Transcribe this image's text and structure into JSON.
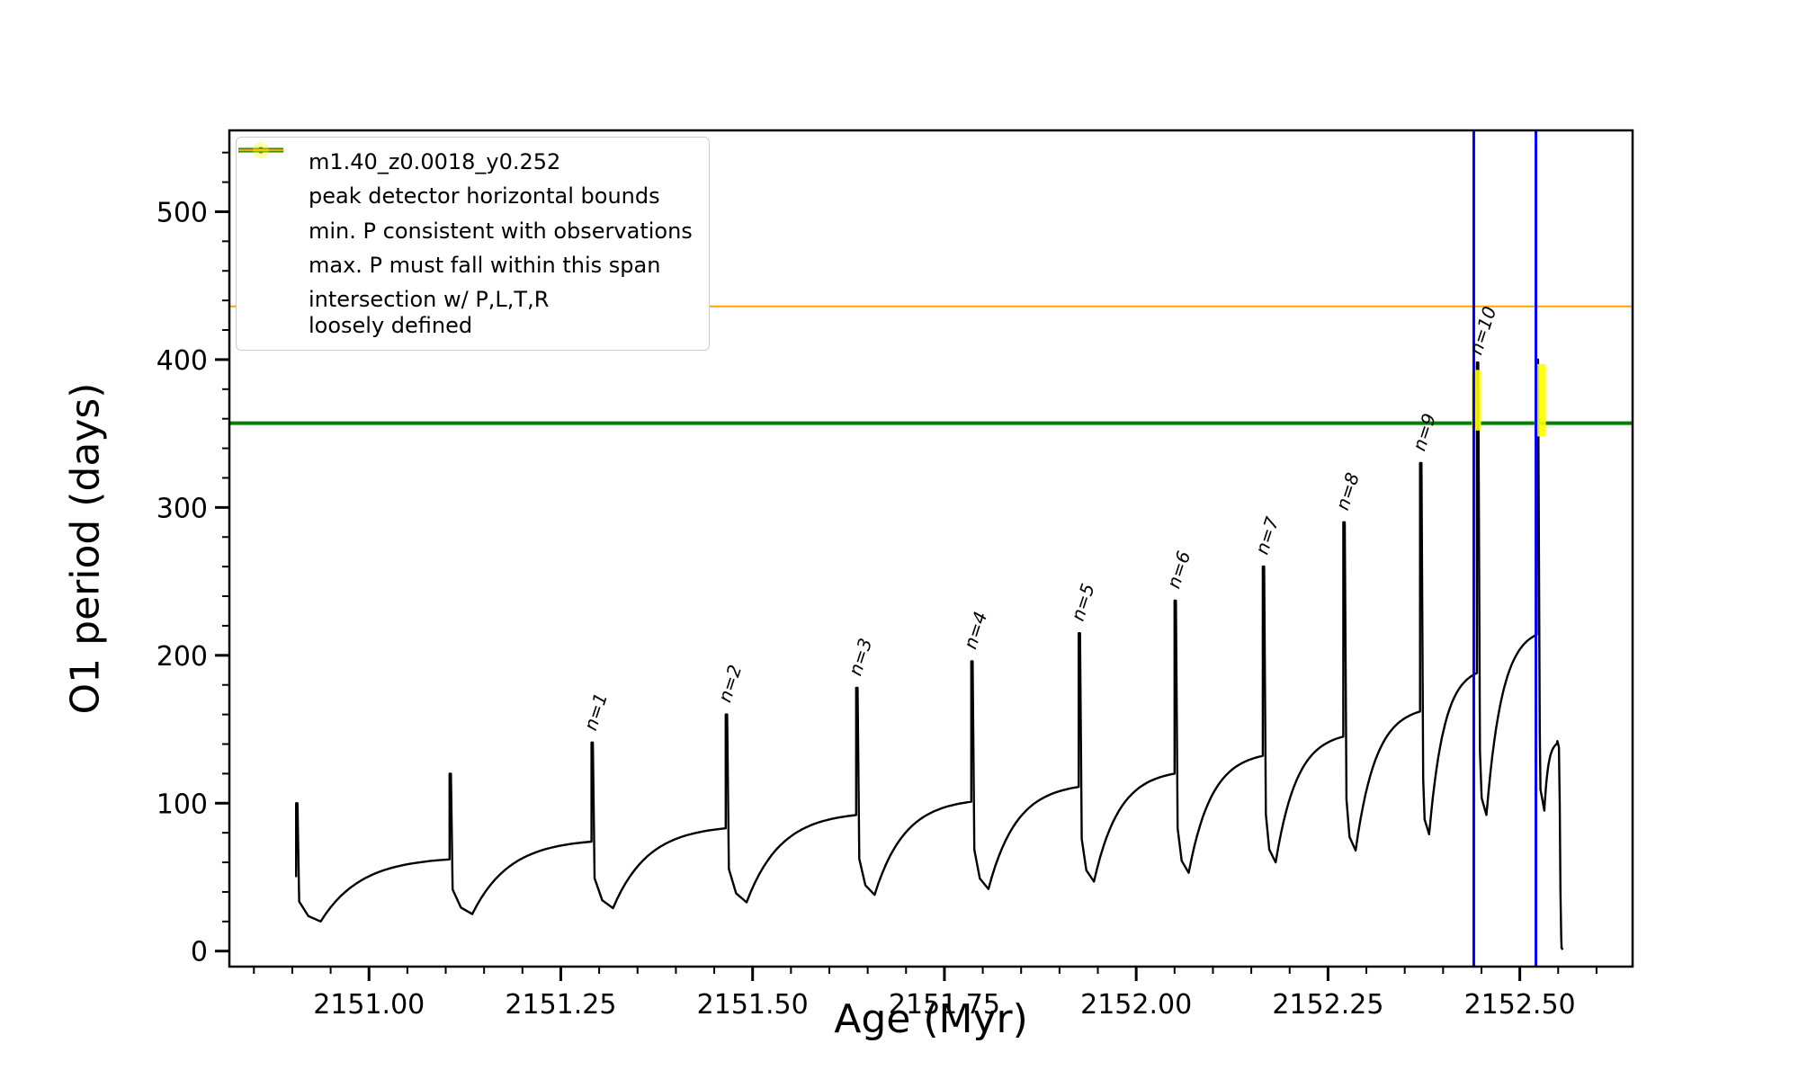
{
  "figure": {
    "background": "#ffffff"
  },
  "chart_data": {
    "type": "line",
    "title": "",
    "xlabel": "Age (Myr)",
    "ylabel": "O1 period (days)",
    "xlim": [
      2150.818,
      2152.647
    ],
    "ylim": [
      -10.5,
      555
    ],
    "grid": false,
    "xticks": [
      2151.0,
      2151.25,
      2151.5,
      2151.75,
      2152.0,
      2152.25,
      2152.5
    ],
    "xtick_labels": [
      "2151.00",
      "2151.25",
      "2151.50",
      "2151.75",
      "2152.00",
      "2152.25",
      "2152.50"
    ],
    "yticks": [
      0,
      100,
      200,
      300,
      400,
      500
    ],
    "ytick_labels": [
      "0",
      "100",
      "200",
      "300",
      "400",
      "500"
    ],
    "x_minor_step": 0.05,
    "y_minor_step": 20,
    "series_name": "m1.40_z0.0018_y0.252",
    "series_color": "#000000",
    "series_xend": 2152.548,
    "series_cycles": [
      {
        "x0": 2150.905,
        "base": 50,
        "peak": 100,
        "ymin": 20,
        "yend": 62
      },
      {
        "x0": 2151.105,
        "base": 62,
        "peak": 120,
        "ymin": 25,
        "yend": 74
      },
      {
        "x0": 2151.29,
        "base": 74,
        "peak": 141,
        "ymin": 29,
        "yend": 83
      },
      {
        "x0": 2151.465,
        "base": 83,
        "peak": 160,
        "ymin": 33,
        "yend": 92
      },
      {
        "x0": 2151.635,
        "base": 92,
        "peak": 178,
        "ymin": 38,
        "yend": 101
      },
      {
        "x0": 2151.785,
        "base": 101,
        "peak": 196,
        "ymin": 42,
        "yend": 111
      },
      {
        "x0": 2151.925,
        "base": 111,
        "peak": 215,
        "ymin": 47,
        "yend": 120
      },
      {
        "x0": 2152.05,
        "base": 120,
        "peak": 237,
        "ymin": 53,
        "yend": 132
      },
      {
        "x0": 2152.165,
        "base": 132,
        "peak": 260,
        "ymin": 60,
        "yend": 145
      },
      {
        "x0": 2152.27,
        "base": 145,
        "peak": 290,
        "ymin": 68,
        "yend": 162
      },
      {
        "x0": 2152.37,
        "base": 162,
        "peak": 330,
        "ymin": 79,
        "yend": 188
      },
      {
        "x0": 2152.444,
        "base": 188,
        "peak": 398,
        "ymin": 92,
        "yend": 214
      },
      {
        "x0": 2152.522,
        "base": 214,
        "peak": 400,
        "ymin": 95,
        "yend": 140
      }
    ],
    "tail_points": [
      [
        2152.549,
        142
      ],
      [
        2152.551,
        138
      ],
      [
        2152.552,
        100
      ],
      [
        2152.553,
        40
      ],
      [
        2152.554,
        8
      ],
      [
        2152.5545,
        2
      ],
      [
        2152.556,
        1
      ]
    ],
    "hlines": [
      {
        "y": 357,
        "color": "#008000",
        "width": 4,
        "name": "min-P-line"
      },
      {
        "y": 436,
        "color": "#ffa500",
        "width": 2,
        "name": "max-P-line"
      }
    ],
    "vlines": [
      {
        "x": 2152.44,
        "color": "#0000ff",
        "width": 3,
        "name": "peak-bound-left"
      },
      {
        "x": 2152.521,
        "color": "#0000ff",
        "width": 3,
        "name": "peak-bound-right"
      }
    ],
    "highlight_patches": [
      {
        "x0": 2152.4375,
        "x1": 2152.4495,
        "y0": 352,
        "y1": 393,
        "color": "#ffff00",
        "opacity": 0.9
      },
      {
        "x0": 2152.519,
        "x1": 2152.534,
        "y0": 348,
        "y1": 397,
        "color": "#ffff00",
        "opacity": 0.9
      }
    ],
    "annotation_rotation_deg": -72,
    "peak_annotations": [
      {
        "label": "n=1",
        "x": 2151.292,
        "y": 146
      },
      {
        "label": "n=2",
        "x": 2151.467,
        "y": 165
      },
      {
        "label": "n=3",
        "x": 2151.637,
        "y": 183
      },
      {
        "label": "n=4",
        "x": 2151.787,
        "y": 201
      },
      {
        "label": "n=5",
        "x": 2151.927,
        "y": 220
      },
      {
        "label": "n=6",
        "x": 2152.052,
        "y": 242
      },
      {
        "label": "n=7",
        "x": 2152.167,
        "y": 265
      },
      {
        "label": "n=8",
        "x": 2152.272,
        "y": 295
      },
      {
        "label": "n=9",
        "x": 2152.372,
        "y": 335
      },
      {
        "label": "n=10",
        "x": 2152.446,
        "y": 400
      }
    ],
    "legend": {
      "position": "upper left",
      "entries": [
        {
          "label": "m1.40_z0.0018_y0.252",
          "color": "#000000",
          "type": "line-marker"
        },
        {
          "label": "peak detector horizontal bounds",
          "color": "#0000ff",
          "type": "line-thick"
        },
        {
          "label": "min. P consistent with observations",
          "color": "#008000",
          "type": "line-thick"
        },
        {
          "label": "max. P must fall within this span",
          "color": "#ffa500",
          "type": "line"
        },
        {
          "label": "intersection w/ P,L,T,R\nloosely defined",
          "color": "#ffff00",
          "type": "marker"
        }
      ]
    }
  }
}
